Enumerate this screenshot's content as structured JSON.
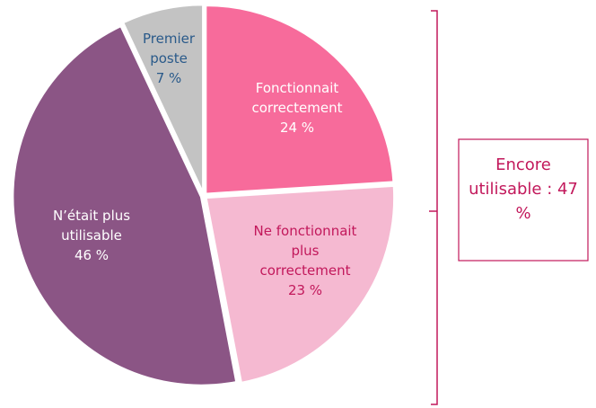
{
  "chart_data": {
    "type": "pie",
    "categories": [
      "Fonctionnait correctement",
      "Ne fonctionnait plus correctement",
      "N’était plus utilisable",
      "Premier poste"
    ],
    "values": [
      24,
      23,
      46,
      7
    ],
    "value_labels": [
      "24 %",
      "23 %",
      "46 %",
      "7 %"
    ],
    "colors": [
      "#f76b9b",
      "#f5b9d1",
      "#8b5585",
      "#c3c3c3"
    ],
    "annotation": "Encore utilisable : 47 %"
  }
}
